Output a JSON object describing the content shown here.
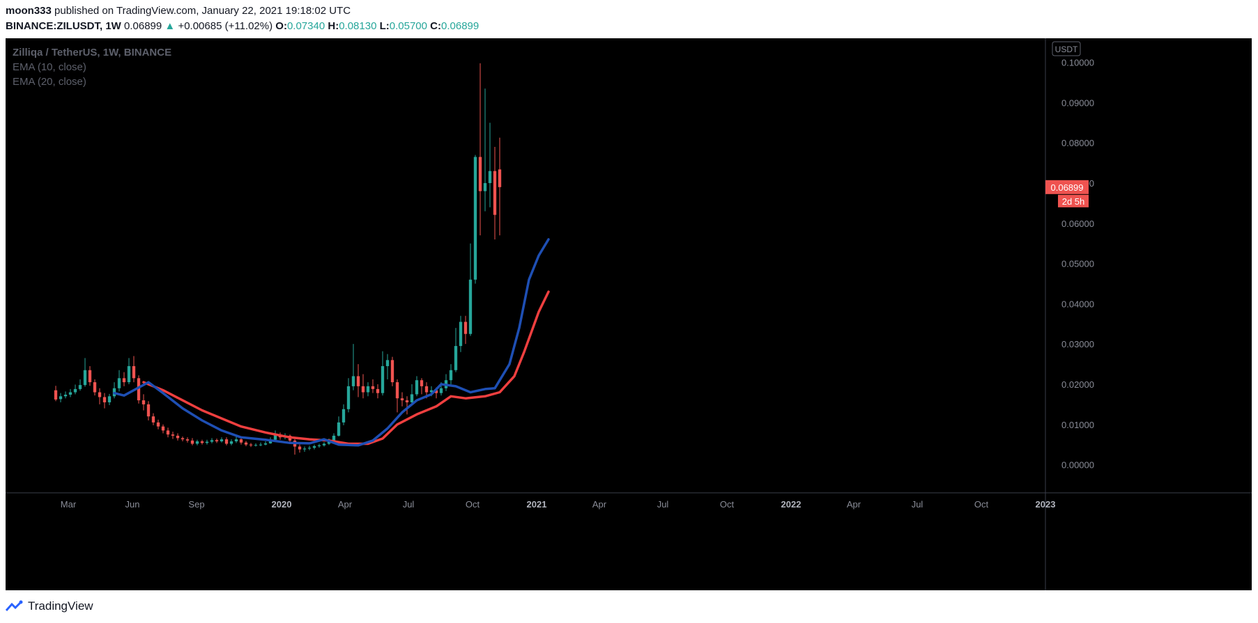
{
  "header": {
    "author": "moon333",
    "published_text": "published on TradingView.com, January 22, 2021 19:18:02 UTC",
    "symbol": "BINANCE:ZILUSDT, 1W",
    "last": "0.06899",
    "change_arrow": "▲",
    "change": "+0.00685 (+11.02%)",
    "o_label": "O:",
    "o_value": "0.07340",
    "h_label": "H:",
    "h_value": "0.08130",
    "l_label": "L:",
    "l_value": "0.05700",
    "c_label": "C:",
    "c_value": "0.06899"
  },
  "legend": {
    "title": "Zilliqa / TetherUS, 1W, BINANCE",
    "ema1": "EMA (10, close)",
    "ema2": "EMA (20, close)"
  },
  "footer": {
    "brand": "TradingView",
    "icon": "tradingview-logo-icon"
  },
  "colors": {
    "up": "#26a69a",
    "down": "#ef5350",
    "ema10": "#1e4fb4",
    "ema20": "#ef3f3f",
    "axis_text": "#8a8d98",
    "axis_line": "#3a3e4a"
  },
  "chart_data": {
    "type": "candlestick",
    "interval": "1W",
    "currency_label": "USDT",
    "ylim": [
      -0.007,
      0.106
    ],
    "yticks": [
      0.0,
      0.01,
      0.02,
      0.03,
      0.04,
      0.05,
      0.06,
      0.07,
      0.08,
      0.09,
      0.1
    ],
    "ytick_labels": [
      "0.00000",
      "0.01000",
      "0.02000",
      "0.03000",
      "0.04000",
      "0.05000",
      "0.06000",
      "0.07000",
      "0.08000",
      "0.09000",
      "0.10000"
    ],
    "xlim": [
      "2018-12-01",
      "2023-01-01"
    ],
    "xticks": [
      {
        "date": "2019-03-01",
        "label": "Mar"
      },
      {
        "date": "2019-06-01",
        "label": "Jun"
      },
      {
        "date": "2019-09-01",
        "label": "Sep"
      },
      {
        "date": "2020-01-01",
        "label": "2020",
        "bold": true
      },
      {
        "date": "2020-04-01",
        "label": "Apr"
      },
      {
        "date": "2020-07-01",
        "label": "Jul"
      },
      {
        "date": "2020-10-01",
        "label": "Oct"
      },
      {
        "date": "2021-01-01",
        "label": "2021",
        "bold": true
      },
      {
        "date": "2021-04-01",
        "label": "Apr"
      },
      {
        "date": "2021-07-01",
        "label": "Jul"
      },
      {
        "date": "2021-10-01",
        "label": "Oct"
      },
      {
        "date": "2022-01-01",
        "label": "2022",
        "bold": true
      },
      {
        "date": "2022-04-01",
        "label": "Apr"
      },
      {
        "date": "2022-07-01",
        "label": "Jul"
      },
      {
        "date": "2022-10-01",
        "label": "Oct"
      },
      {
        "date": "2023-01-01",
        "label": "2023",
        "bold": true
      }
    ],
    "first_week": "2019-02-11",
    "candles": [
      [
        0.0185,
        0.0162,
        0.0196,
        0.0158
      ],
      [
        0.0163,
        0.017,
        0.0178,
        0.0155
      ],
      [
        0.017,
        0.0174,
        0.0182,
        0.0165
      ],
      [
        0.0174,
        0.018,
        0.0188,
        0.0168
      ],
      [
        0.018,
        0.0188,
        0.0199,
        0.0175
      ],
      [
        0.0188,
        0.0198,
        0.0212,
        0.0184
      ],
      [
        0.0198,
        0.0235,
        0.0265,
        0.0194
      ],
      [
        0.0235,
        0.0205,
        0.0245,
        0.0196
      ],
      [
        0.0205,
        0.018,
        0.0212,
        0.0172
      ],
      [
        0.018,
        0.0168,
        0.019,
        0.015
      ],
      [
        0.0168,
        0.0155,
        0.0178,
        0.014
      ],
      [
        0.0155,
        0.017,
        0.0176,
        0.0148
      ],
      [
        0.017,
        0.019,
        0.0205,
        0.0165
      ],
      [
        0.019,
        0.0215,
        0.0235,
        0.0182
      ],
      [
        0.0215,
        0.0205,
        0.023,
        0.0195
      ],
      [
        0.0205,
        0.0245,
        0.0265,
        0.02
      ],
      [
        0.0245,
        0.0215,
        0.027,
        0.0205
      ],
      [
        0.0215,
        0.016,
        0.0222,
        0.0152
      ],
      [
        0.016,
        0.015,
        0.0175,
        0.0135
      ],
      [
        0.015,
        0.012,
        0.0158,
        0.011
      ],
      [
        0.012,
        0.0105,
        0.0128,
        0.0098
      ],
      [
        0.0105,
        0.0095,
        0.0112,
        0.0088
      ],
      [
        0.0095,
        0.0085,
        0.01,
        0.0078
      ],
      [
        0.0085,
        0.0075,
        0.0092,
        0.0068
      ],
      [
        0.0075,
        0.0072,
        0.0082,
        0.0064
      ],
      [
        0.0072,
        0.0066,
        0.0078,
        0.006
      ],
      [
        0.0066,
        0.0063,
        0.007,
        0.0058
      ],
      [
        0.0063,
        0.006,
        0.0068,
        0.0055
      ],
      [
        0.006,
        0.0052,
        0.0066,
        0.0048
      ],
      [
        0.0052,
        0.0058,
        0.0062,
        0.0048
      ],
      [
        0.0058,
        0.0054,
        0.0062,
        0.005
      ],
      [
        0.0054,
        0.0057,
        0.0062,
        0.005
      ],
      [
        0.0057,
        0.0061,
        0.0066,
        0.0053
      ],
      [
        0.0061,
        0.0058,
        0.0065,
        0.0054
      ],
      [
        0.0058,
        0.0063,
        0.0068,
        0.0055
      ],
      [
        0.0063,
        0.0052,
        0.0068,
        0.0048
      ],
      [
        0.0052,
        0.0058,
        0.0063,
        0.0048
      ],
      [
        0.0058,
        0.0063,
        0.007,
        0.0054
      ],
      [
        0.0063,
        0.0055,
        0.0066,
        0.005
      ],
      [
        0.0055,
        0.005,
        0.0059,
        0.0046
      ],
      [
        0.005,
        0.0048,
        0.0054,
        0.0044
      ],
      [
        0.0048,
        0.0049,
        0.0053,
        0.0045
      ],
      [
        0.0049,
        0.005,
        0.0055,
        0.0046
      ],
      [
        0.005,
        0.0053,
        0.0058,
        0.0048
      ],
      [
        0.0053,
        0.0062,
        0.0068,
        0.0052
      ],
      [
        0.0062,
        0.0075,
        0.0085,
        0.006
      ],
      [
        0.0075,
        0.0068,
        0.008,
        0.0062
      ],
      [
        0.0068,
        0.0072,
        0.0078,
        0.0063
      ],
      [
        0.0072,
        0.006,
        0.0075,
        0.0055
      ],
      [
        0.006,
        0.0045,
        0.0064,
        0.0025
      ],
      [
        0.0045,
        0.0038,
        0.005,
        0.003
      ],
      [
        0.0038,
        0.004,
        0.0045,
        0.0032
      ],
      [
        0.004,
        0.0042,
        0.0047,
        0.0036
      ],
      [
        0.0042,
        0.0046,
        0.005,
        0.0038
      ],
      [
        0.0046,
        0.0048,
        0.0052,
        0.0042
      ],
      [
        0.0048,
        0.0052,
        0.0056,
        0.0045
      ],
      [
        0.0052,
        0.006,
        0.0065,
        0.0049
      ],
      [
        0.006,
        0.0072,
        0.0078,
        0.0058
      ],
      [
        0.0072,
        0.0105,
        0.012,
        0.007
      ],
      [
        0.0105,
        0.0138,
        0.015,
        0.0098
      ],
      [
        0.0138,
        0.0195,
        0.0215,
        0.013
      ],
      [
        0.0195,
        0.022,
        0.03,
        0.0185
      ],
      [
        0.022,
        0.0195,
        0.025,
        0.0168
      ],
      [
        0.0195,
        0.018,
        0.0225,
        0.0165
      ],
      [
        0.018,
        0.0195,
        0.0205,
        0.017
      ],
      [
        0.0195,
        0.0188,
        0.0212,
        0.0178
      ],
      [
        0.0188,
        0.0178,
        0.02,
        0.0165
      ],
      [
        0.0178,
        0.0245,
        0.0282,
        0.0172
      ],
      [
        0.0245,
        0.026,
        0.0275,
        0.0212
      ],
      [
        0.026,
        0.0205,
        0.0268,
        0.0195
      ],
      [
        0.0205,
        0.0165,
        0.0212,
        0.013
      ],
      [
        0.0165,
        0.016,
        0.018,
        0.0145
      ],
      [
        0.016,
        0.0155,
        0.017,
        0.0125
      ],
      [
        0.0155,
        0.0175,
        0.02,
        0.015
      ],
      [
        0.0175,
        0.021,
        0.022,
        0.017
      ],
      [
        0.021,
        0.0195,
        0.0215,
        0.0175
      ],
      [
        0.0195,
        0.018,
        0.0205,
        0.0165
      ],
      [
        0.018,
        0.0185,
        0.0195,
        0.017
      ],
      [
        0.0185,
        0.0178,
        0.0192,
        0.0165
      ],
      [
        0.0178,
        0.019,
        0.0205,
        0.0172
      ],
      [
        0.019,
        0.021,
        0.0225,
        0.0183
      ],
      [
        0.021,
        0.0235,
        0.025,
        0.02
      ],
      [
        0.0235,
        0.0295,
        0.034,
        0.023
      ],
      [
        0.0295,
        0.0355,
        0.037,
        0.028
      ],
      [
        0.0355,
        0.0325,
        0.037,
        0.03
      ],
      [
        0.0325,
        0.046,
        0.055,
        0.032
      ],
      [
        0.046,
        0.0765,
        0.077,
        0.045
      ],
      [
        0.0765,
        0.068,
        0.0998,
        0.057
      ],
      [
        0.068,
        0.07,
        0.0935,
        0.063
      ],
      [
        0.07,
        0.073,
        0.085,
        0.064
      ],
      [
        0.073,
        0.0621,
        0.079,
        0.056
      ],
      [
        0.0734,
        0.069,
        0.0813,
        0.057
      ]
    ],
    "ema10": [
      [
        "2019-05-06",
        0.0178
      ],
      [
        "2019-05-20",
        0.0172
      ],
      [
        "2019-06-03",
        0.0185
      ],
      [
        "2019-06-24",
        0.0205
      ],
      [
        "2019-07-15",
        0.0178
      ],
      [
        "2019-08-12",
        0.014
      ],
      [
        "2019-09-09",
        0.011
      ],
      [
        "2019-10-07",
        0.0085
      ],
      [
        "2019-11-04",
        0.0068
      ],
      [
        "2019-12-09",
        0.0062
      ],
      [
        "2020-01-13",
        0.0054
      ],
      [
        "2020-02-10",
        0.0053
      ],
      [
        "2020-03-02",
        0.0063
      ],
      [
        "2020-03-23",
        0.005
      ],
      [
        "2020-04-20",
        0.0048
      ],
      [
        "2020-05-11",
        0.006
      ],
      [
        "2020-06-01",
        0.009
      ],
      [
        "2020-06-22",
        0.013
      ],
      [
        "2020-07-13",
        0.016
      ],
      [
        "2020-08-03",
        0.0175
      ],
      [
        "2020-08-17",
        0.02
      ],
      [
        "2020-09-07",
        0.0195
      ],
      [
        "2020-09-28",
        0.018
      ],
      [
        "2020-10-19",
        0.0188
      ],
      [
        "2020-11-02",
        0.019
      ],
      [
        "2020-11-23",
        0.025
      ],
      [
        "2020-12-07",
        0.034
      ],
      [
        "2020-12-21",
        0.046
      ],
      [
        "2021-01-04",
        0.052
      ],
      [
        "2021-01-18",
        0.056
      ]
    ],
    "ema20": [
      [
        "2019-06-17",
        0.0205
      ],
      [
        "2019-07-15",
        0.0185
      ],
      [
        "2019-08-12",
        0.016
      ],
      [
        "2019-09-09",
        0.0135
      ],
      [
        "2019-10-07",
        0.0115
      ],
      [
        "2019-11-04",
        0.0095
      ],
      [
        "2019-12-09",
        0.008
      ],
      [
        "2020-01-13",
        0.0068
      ],
      [
        "2020-02-10",
        0.0063
      ],
      [
        "2020-03-09",
        0.006
      ],
      [
        "2020-04-06",
        0.0052
      ],
      [
        "2020-05-04",
        0.0052
      ],
      [
        "2020-05-25",
        0.0065
      ],
      [
        "2020-06-15",
        0.01
      ],
      [
        "2020-07-13",
        0.0125
      ],
      [
        "2020-08-10",
        0.0145
      ],
      [
        "2020-08-31",
        0.017
      ],
      [
        "2020-09-21",
        0.0165
      ],
      [
        "2020-10-19",
        0.017
      ],
      [
        "2020-11-09",
        0.018
      ],
      [
        "2020-11-30",
        0.022
      ],
      [
        "2020-12-14",
        0.028
      ],
      [
        "2021-01-04",
        0.038
      ],
      [
        "2021-01-18",
        0.043
      ]
    ],
    "last_price_label": "0.06899",
    "countdown_label": "2d 5h"
  }
}
